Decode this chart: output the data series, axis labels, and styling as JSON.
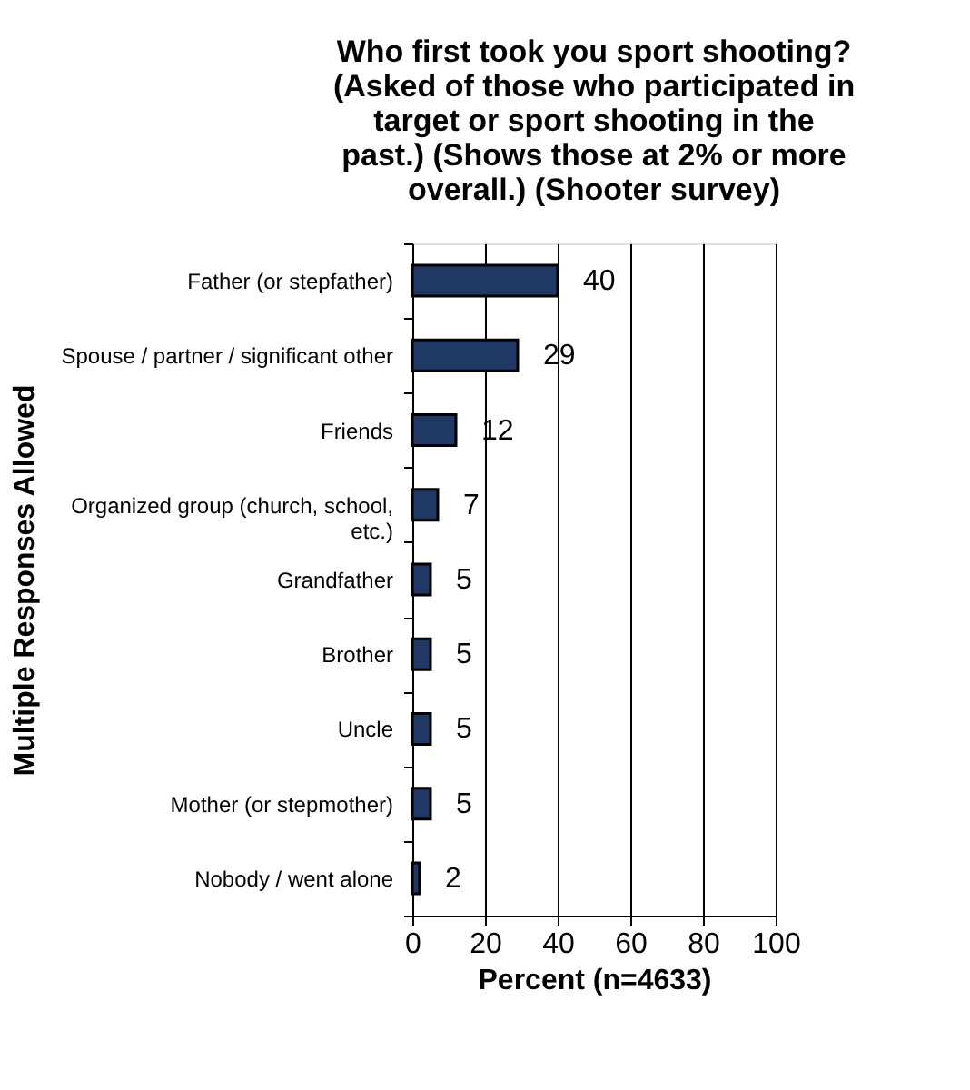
{
  "chart_data": {
    "type": "bar",
    "orientation": "horizontal",
    "title": "Who first took you sport shooting? (Asked of those who participated in target or sport shooting in the past.) (Shows those at 2% or more overall.) (Shooter survey)",
    "xlabel": "Percent (n=4633)",
    "ylabel": "Multiple Responses Allowed",
    "categories": [
      "Father (or stepfather)",
      "Spouse / partner / significant other",
      "Friends",
      "Organized group (church, school, etc.)",
      "Grandfather",
      "Brother",
      "Uncle",
      "Mother (or stepmother)",
      "Nobody / went alone"
    ],
    "values": [
      40,
      29,
      12,
      7,
      5,
      5,
      5,
      5,
      2
    ],
    "color": "#203864",
    "xlim": [
      0,
      100
    ],
    "xticks": [
      0,
      20,
      40,
      60,
      80,
      100
    ],
    "grid": "x",
    "data_labels": true
  }
}
